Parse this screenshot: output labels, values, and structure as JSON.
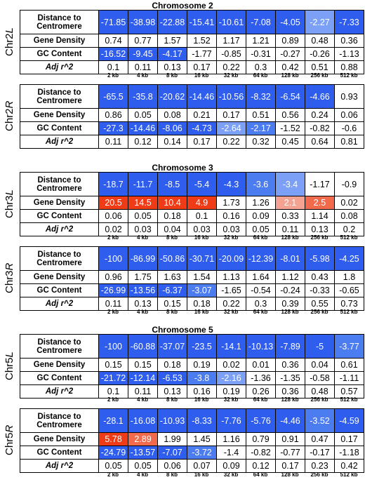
{
  "colors": {
    "blue_strong": "#2f5ded",
    "blue_medium": "#4b7cf0",
    "blue_light": "#7ba0f5",
    "red_strong": "#ef3b16",
    "red_medium": "#f26a4c",
    "red_light": "#f4a393"
  },
  "headings": {
    "chr2": "Chromosome 2",
    "chr3": "Chromosome 3",
    "chr5": "Chromosome 5"
  },
  "row_labels": {
    "distance_1": "Distance to",
    "distance_2": "Centromere",
    "gene_density": "Gene Density",
    "gc_content": "GC Content",
    "adj_r2": "Adj r^2"
  },
  "bins": [
    "2 kb",
    "4 kb",
    "8 kb",
    "16 kb",
    "32 kb",
    "64 kb",
    "128 kb",
    "256 kb",
    "512 kb"
  ],
  "chart_data": {
    "type": "table",
    "columns": [
      "2 kb",
      "4 kb",
      "8 kb",
      "16 kb",
      "32 kb",
      "64 kb",
      "128 kb",
      "256 kb",
      "512 kb"
    ],
    "arms": [
      {
        "prefix": "Chr2",
        "suffix": "L",
        "rows": {
          "distance": [
            "-71.85",
            "-38.98",
            "-22.88",
            "-15.41",
            "-10.61",
            "-7.08",
            "-4.05",
            "-2.27",
            "-7.33"
          ],
          "gene_density": [
            "0.74",
            "0.77",
            "1.57",
            "1.52",
            "1.17",
            "1.21",
            "0.89",
            "0.48",
            "0.36"
          ],
          "gc_content": [
            "-16.52",
            "-9.45",
            "-4.17",
            "-1.77",
            "-0.85",
            "-0.31",
            "-0.27",
            "-0.26",
            "-1.13"
          ],
          "adj_r2": [
            "0.1",
            "0.11",
            "0.13",
            "0.17",
            "0.22",
            "0.3",
            "0.42",
            "0.51",
            "0.88"
          ]
        },
        "shading": {
          "distance": [
            "bs",
            "bs",
            "bs",
            "bs",
            "bs",
            "bs",
            "bs",
            "bl",
            "bs"
          ],
          "gene_density": [
            "",
            "",
            "",
            "",
            "",
            "",
            "",
            "",
            ""
          ],
          "gc_content": [
            "bs",
            "bs",
            "bs",
            "",
            "",
            "",
            "",
            "",
            ""
          ],
          "adj_r2": [
            "",
            "",
            "",
            "",
            "",
            "",
            "",
            "",
            ""
          ]
        }
      },
      {
        "prefix": "Chr2",
        "suffix": "R",
        "rows": {
          "distance": [
            "-65.5",
            "-35.8",
            "-20.62",
            "-14.46",
            "-10.56",
            "-8.32",
            "-6.54",
            "-4.66",
            "0.93"
          ],
          "gene_density": [
            "0.86",
            "0.05",
            "0.08",
            "0.21",
            "0.17",
            "0.51",
            "0.56",
            "0.24",
            "0.06"
          ],
          "gc_content": [
            "-27.3",
            "-14.46",
            "-8.06",
            "-4.73",
            "-2.64",
            "-2.17",
            "-1.52",
            "-0.82",
            "-0.6"
          ],
          "adj_r2": [
            "0.11",
            "0.12",
            "0.14",
            "0.17",
            "0.22",
            "0.32",
            "0.45",
            "0.64",
            "0.81"
          ]
        },
        "shading": {
          "distance": [
            "bs",
            "bs",
            "bs",
            "bs",
            "bs",
            "bs",
            "bs",
            "bs",
            ""
          ],
          "gene_density": [
            "",
            "",
            "",
            "",
            "",
            "",
            "",
            "",
            ""
          ],
          "gc_content": [
            "bs",
            "bs",
            "bs",
            "bs",
            "bl",
            "bm",
            "",
            "",
            ""
          ],
          "adj_r2": [
            "",
            "",
            "",
            "",
            "",
            "",
            "",
            "",
            ""
          ]
        }
      },
      {
        "prefix": "Chr3",
        "suffix": "L",
        "rows": {
          "distance": [
            "-18.7",
            "-11.7",
            "-8.5",
            "-5.4",
            "-4.3",
            "-3.6",
            "-3.4",
            "-1.17",
            "-0.9"
          ],
          "gene_density": [
            "20.5",
            "14.5",
            "10.4",
            "4.9",
            "1.73",
            "1.26",
            "2.1",
            "2.5",
            "0.02"
          ],
          "gc_content": [
            "0.06",
            "0.05",
            "0.18",
            "0.1",
            "0.16",
            "0.09",
            "0.33",
            "1.14",
            "0.08"
          ],
          "adj_r2": [
            "0.02",
            "0.03",
            "0.04",
            "0.03",
            "0.03",
            "0.05",
            "0.11",
            "0.13",
            "0.2"
          ]
        },
        "shading": {
          "distance": [
            "bs",
            "bs",
            "bs",
            "bs",
            "bs",
            "bm",
            "bl",
            "",
            ""
          ],
          "gene_density": [
            "rs",
            "rs",
            "rs",
            "rs",
            "",
            "",
            "rl",
            "rm",
            ""
          ],
          "gc_content": [
            "",
            "",
            "",
            "",
            "",
            "",
            "",
            "",
            ""
          ],
          "adj_r2": [
            "",
            "",
            "",
            "",
            "",
            "",
            "",
            "",
            ""
          ]
        }
      },
      {
        "prefix": "Chr3",
        "suffix": "R",
        "rows": {
          "distance": [
            "-100",
            "-86.99",
            "-50.86",
            "-30.71",
            "-20.09",
            "-12.39",
            "-8.01",
            "-5.98",
            "-4.25"
          ],
          "gene_density": [
            "0.96",
            "1.75",
            "1.63",
            "1.54",
            "1.13",
            "1.64",
            "1.12",
            "0.43",
            "1.8"
          ],
          "gc_content": [
            "-26.99",
            "-13.56",
            "-6.37",
            "-3.07",
            "-1.65",
            "-0.54",
            "-0.24",
            "-0.33",
            "-0.65"
          ],
          "adj_r2": [
            "0.11",
            "0.13",
            "0.15",
            "0.18",
            "0.22",
            "0.3",
            "0.39",
            "0.55",
            "0.73"
          ]
        },
        "shading": {
          "distance": [
            "bs",
            "bs",
            "bs",
            "bs",
            "bs",
            "bs",
            "bs",
            "bs",
            "bs"
          ],
          "gene_density": [
            "",
            "",
            "",
            "",
            "",
            "",
            "",
            "",
            ""
          ],
          "gc_content": [
            "bs",
            "bs",
            "bs",
            "bm",
            "",
            "",
            "",
            "",
            ""
          ],
          "adj_r2": [
            "",
            "",
            "",
            "",
            "",
            "",
            "",
            "",
            ""
          ]
        }
      },
      {
        "prefix": "Chr5",
        "suffix": "L",
        "rows": {
          "distance": [
            "-100",
            "-60.88",
            "-37.07",
            "-23.5",
            "-14.1",
            "-10.13",
            "-7.89",
            "-5",
            "-3.77"
          ],
          "gene_density": [
            "0.15",
            "0.15",
            "0.18",
            "0.19",
            "0.02",
            "0.01",
            "0.36",
            "0.04",
            "0.61"
          ],
          "gc_content": [
            "-21.72",
            "-12.14",
            "-6.53",
            "-3.8",
            "-2.16",
            "-1.36",
            "-1.35",
            "-0.58",
            "-1.11"
          ],
          "adj_r2": [
            "0.1",
            "0.11",
            "0.13",
            "0.16",
            "0.19",
            "0.26",
            "0.36",
            "0.48",
            "0.57"
          ]
        },
        "shading": {
          "distance": [
            "bs",
            "bs",
            "bs",
            "bs",
            "bs",
            "bs",
            "bs",
            "bs",
            "bm"
          ],
          "gene_density": [
            "",
            "",
            "",
            "",
            "",
            "",
            "",
            "",
            ""
          ],
          "gc_content": [
            "bs",
            "bs",
            "bs",
            "bm",
            "bl",
            "",
            "",
            "",
            ""
          ],
          "adj_r2": [
            "",
            "",
            "",
            "",
            "",
            "",
            "",
            "",
            ""
          ]
        }
      },
      {
        "prefix": "Chr5",
        "suffix": "R",
        "rows": {
          "distance": [
            "-28.1",
            "-16.08",
            "-10.93",
            "-8.33",
            "-7.76",
            "-5.76",
            "-4.46",
            "-3.52",
            "-4.59"
          ],
          "gene_density": [
            "5.78",
            "2.89",
            "1.99",
            "1.45",
            "1.16",
            "0.79",
            "0.91",
            "0.47",
            "0.17"
          ],
          "gc_content": [
            "-24.79",
            "-13.57",
            "-7.07",
            "-3.72",
            "-1.4",
            "-0.82",
            "-0.77",
            "-0.17",
            "-1.18"
          ],
          "adj_r2": [
            "0.05",
            "0.05",
            "0.06",
            "0.07",
            "0.09",
            "0.12",
            "0.17",
            "0.23",
            "0.42"
          ]
        },
        "shading": {
          "distance": [
            "bs",
            "bs",
            "bs",
            "bs",
            "bs",
            "bs",
            "bs",
            "bm",
            "bs"
          ],
          "gene_density": [
            "rs",
            "rm",
            "",
            "",
            "",
            "",
            "",
            "",
            ""
          ],
          "gc_content": [
            "bs",
            "bs",
            "bs",
            "bm",
            "",
            "",
            "",
            "",
            ""
          ],
          "adj_r2": [
            "",
            "",
            "",
            "",
            "",
            "",
            "",
            "",
            ""
          ]
        }
      }
    ]
  }
}
